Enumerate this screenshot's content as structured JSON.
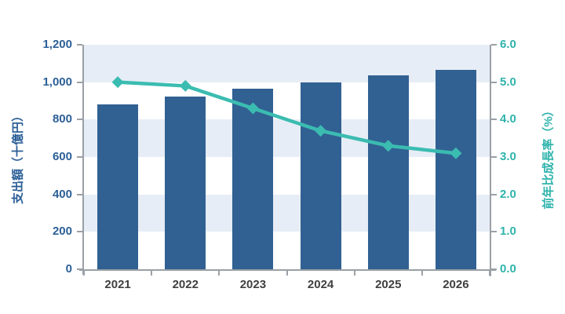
{
  "chart_data": {
    "type": "bar",
    "subtype": "combo-bar-line",
    "title": "",
    "legend": "none",
    "grid": "horizontal-bands",
    "categories": [
      "2021",
      "2022",
      "2023",
      "2024",
      "2025",
      "2026"
    ],
    "series": [
      {
        "name": "支出額",
        "type": "bar",
        "axis": "left",
        "values": [
          880,
          925,
          965,
          1000,
          1035,
          1065
        ],
        "color": "#316192"
      },
      {
        "name": "前年比成長率",
        "type": "line",
        "axis": "right",
        "marker": "diamond",
        "values": [
          5.0,
          4.9,
          4.3,
          3.7,
          3.3,
          3.1
        ],
        "color": "#3bbcb1"
      }
    ],
    "left_axis": {
      "label": "支出額（十億円）",
      "min": 0,
      "max": 1200,
      "step": 200,
      "tick_labels": [
        "0",
        "200",
        "400",
        "600",
        "800",
        "1,000",
        "1,200"
      ],
      "text_color": "#2c5f97"
    },
    "right_axis": {
      "label": "前年比成長率（%）",
      "min": 0,
      "max": 6,
      "step": 1,
      "tick_labels": [
        "0.0",
        "1.0",
        "2.0",
        "3.0",
        "4.0",
        "5.0",
        "6.0"
      ],
      "text_color": "#2fb3ac"
    },
    "x_axis": {
      "tick_labels": [
        "2021",
        "2022",
        "2023",
        "2024",
        "2025",
        "2026"
      ],
      "text_color": "#3f3f3f"
    },
    "colors": {
      "band_fill": "#e7edf6",
      "band_alt_fill": "#ffffff",
      "axis_line": "#9aa0a6"
    }
  }
}
